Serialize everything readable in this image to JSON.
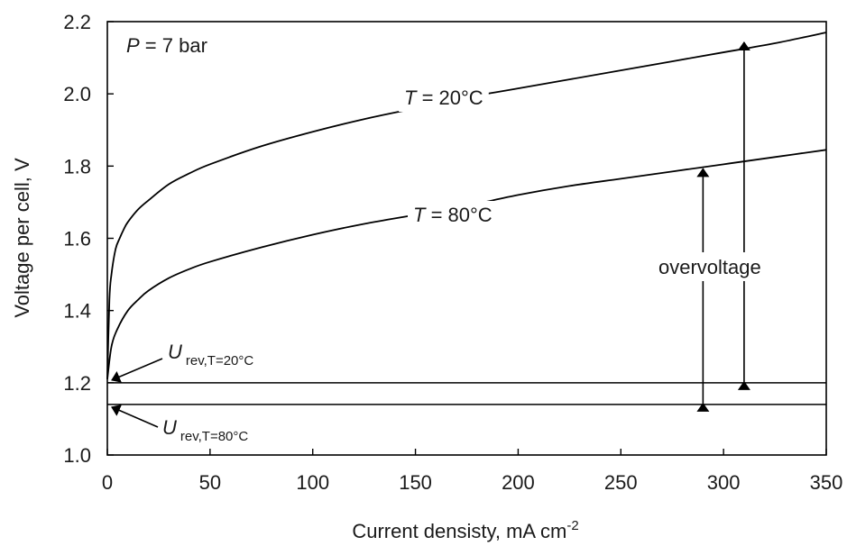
{
  "chart_data": {
    "type": "line",
    "xlabel": "Current densisty, mA cm",
    "xlabel_superscript": "-2",
    "ylabel": "Voltage per cell, V",
    "xlim": [
      0,
      350
    ],
    "ylim": [
      1.0,
      2.2
    ],
    "x_ticks": [
      "0",
      "50",
      "100",
      "150",
      "200",
      "250",
      "300",
      "350"
    ],
    "y_ticks": [
      "1.0",
      "1.2",
      "1.4",
      "1.6",
      "1.8",
      "2.0",
      "2.2"
    ],
    "grid": false,
    "series": [
      {
        "name": "T = 20°C",
        "label_var": "T",
        "label_rest": " = 20°C",
        "x": [
          0,
          1,
          2,
          4,
          6,
          8,
          10,
          15,
          20,
          30,
          40,
          50,
          75,
          100,
          125,
          150,
          175,
          200,
          225,
          250,
          275,
          300,
          325,
          350
        ],
        "y": [
          1.21,
          1.43,
          1.5,
          1.57,
          1.6,
          1.625,
          1.645,
          1.68,
          1.705,
          1.75,
          1.78,
          1.805,
          1.855,
          1.895,
          1.93,
          1.96,
          1.99,
          2.015,
          2.04,
          2.065,
          2.09,
          2.115,
          2.14,
          2.17
        ]
      },
      {
        "name": "T = 80°C",
        "label_var": "T",
        "label_rest": " = 80°C",
        "x": [
          0,
          2,
          5,
          10,
          15,
          20,
          30,
          40,
          50,
          75,
          100,
          125,
          150,
          175,
          200,
          225,
          250,
          275,
          300,
          325,
          350
        ],
        "y": [
          1.21,
          1.3,
          1.35,
          1.4,
          1.43,
          1.455,
          1.49,
          1.515,
          1.535,
          1.575,
          1.61,
          1.64,
          1.665,
          1.69,
          1.72,
          1.745,
          1.765,
          1.785,
          1.805,
          1.825,
          1.845
        ]
      }
    ],
    "reference_lines": [
      {
        "y": 1.2,
        "label_var": "U",
        "label_sub": "rev,T=20°C"
      },
      {
        "y": 1.14,
        "label_var": "U",
        "label_sub": "rev,T=80°C"
      }
    ],
    "pressure_label": {
      "var": "P",
      "rest": " = 7 bar"
    },
    "overvoltage": {
      "label": "overvoltage",
      "arrows": [
        {
          "x": 310,
          "y_from": 1.2,
          "y_to": 2.145
        },
        {
          "x": 290,
          "y_from": 1.14,
          "y_to": 1.795
        }
      ]
    }
  }
}
